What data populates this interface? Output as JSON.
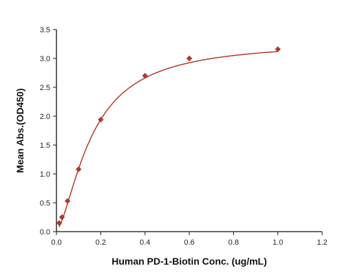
{
  "chart_data": {
    "type": "scatter",
    "title": "",
    "xlabel": "Human PD-1-Biotin Conc. (ug/mL)",
    "ylabel": "Mean Abs.(OD450)",
    "xlim": [
      0,
      1.2
    ],
    "ylim": [
      0,
      3.5
    ],
    "x_ticks": [
      "0.0",
      "0.2",
      "0.4",
      "0.6",
      "0.8",
      "1.0",
      "1.2"
    ],
    "y_ticks": [
      "0.0",
      "0.5",
      "1.0",
      "1.5",
      "2.0",
      "2.5",
      "3.0",
      "3.5"
    ],
    "grid": false,
    "legend": "none",
    "series": [
      {
        "marker": "diamond",
        "color": "#b03a2e",
        "points": [
          {
            "x": 0.0125,
            "y": 0.15
          },
          {
            "x": 0.025,
            "y": 0.25
          },
          {
            "x": 0.05,
            "y": 0.53
          },
          {
            "x": 0.1,
            "y": 1.08
          },
          {
            "x": 0.2,
            "y": 1.94
          },
          {
            "x": 0.4,
            "y": 2.7
          },
          {
            "x": 0.6,
            "y": 3.0
          },
          {
            "x": 1.0,
            "y": 3.16
          }
        ]
      }
    ],
    "fit_curve": {
      "color": "#b03a2e",
      "model": "4PL",
      "bottom": 0.02,
      "top": 3.3,
      "ec50": 0.16,
      "hill": 1.55
    }
  }
}
